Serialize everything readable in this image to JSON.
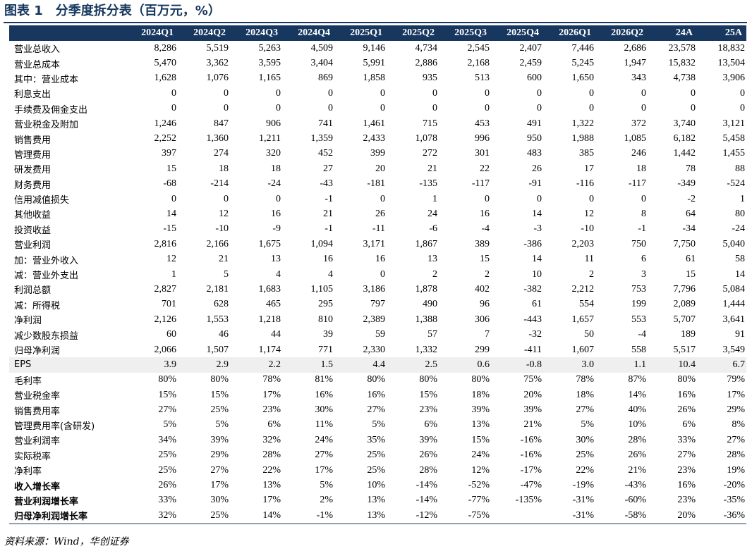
{
  "title": "图表 1　分季度拆分表（百万元，%）",
  "header": [
    "",
    "2024Q1",
    "2024Q2",
    "2024Q3",
    "2024Q4",
    "2025Q1",
    "2025Q2",
    "2025Q3",
    "2025Q4",
    "2026Q1",
    "2026Q2",
    "24A",
    "25A"
  ],
  "rows": [
    {
      "label": "营业总收入",
      "values": [
        "8,286",
        "5,519",
        "5,263",
        "4,509",
        "9,146",
        "4,734",
        "2,545",
        "2,407",
        "7,446",
        "2,686",
        "23,578",
        "18,832"
      ]
    },
    {
      "label": "营业总成本",
      "values": [
        "5,470",
        "3,362",
        "3,595",
        "3,404",
        "5,991",
        "2,886",
        "2,168",
        "2,459",
        "5,245",
        "1,947",
        "15,832",
        "13,504"
      ]
    },
    {
      "label": "其中：营业成本",
      "values": [
        "1,628",
        "1,076",
        "1,165",
        "869",
        "1,858",
        "935",
        "513",
        "600",
        "1,650",
        "343",
        "4,738",
        "3,906"
      ]
    },
    {
      "label": "利息支出",
      "values": [
        "0",
        "0",
        "0",
        "0",
        "0",
        "0",
        "0",
        "0",
        "0",
        "0",
        "0",
        "0"
      ]
    },
    {
      "label": "手续费及佣金支出",
      "values": [
        "0",
        "0",
        "0",
        "0",
        "0",
        "0",
        "0",
        "0",
        "0",
        "0",
        "0",
        "0"
      ]
    },
    {
      "label": "营业税金及附加",
      "values": [
        "1,246",
        "847",
        "906",
        "741",
        "1,461",
        "715",
        "453",
        "491",
        "1,322",
        "372",
        "3,740",
        "3,121"
      ]
    },
    {
      "label": "销售费用",
      "values": [
        "2,252",
        "1,360",
        "1,211",
        "1,359",
        "2,433",
        "1,078",
        "996",
        "950",
        "1,988",
        "1,085",
        "6,182",
        "5,458"
      ]
    },
    {
      "label": "管理费用",
      "values": [
        "397",
        "274",
        "320",
        "452",
        "399",
        "272",
        "301",
        "483",
        "385",
        "246",
        "1,442",
        "1,455"
      ]
    },
    {
      "label": "研发费用",
      "values": [
        "15",
        "18",
        "18",
        "27",
        "20",
        "21",
        "22",
        "26",
        "17",
        "18",
        "78",
        "88"
      ]
    },
    {
      "label": "财务费用",
      "values": [
        "-68",
        "-214",
        "-24",
        "-43",
        "-181",
        "-135",
        "-117",
        "-91",
        "-116",
        "-117",
        "-349",
        "-524"
      ]
    },
    {
      "label": "信用减值损失",
      "values": [
        "0",
        "0",
        "0",
        "-1",
        "0",
        "1",
        "0",
        "0",
        "0",
        "0",
        "-2",
        "1"
      ]
    },
    {
      "label": "其他收益",
      "values": [
        "14",
        "12",
        "16",
        "21",
        "26",
        "24",
        "16",
        "14",
        "12",
        "8",
        "64",
        "80"
      ]
    },
    {
      "label": "投资收益",
      "values": [
        "-15",
        "-10",
        "-9",
        "-1",
        "-11",
        "-6",
        "-4",
        "-3",
        "-10",
        "-1",
        "-34",
        "-24"
      ]
    },
    {
      "label": "营业利润",
      "values": [
        "2,816",
        "2,166",
        "1,675",
        "1,094",
        "3,171",
        "1,867",
        "389",
        "-386",
        "2,203",
        "750",
        "7,750",
        "5,040"
      ]
    },
    {
      "label": "加：营业外收入",
      "values": [
        "12",
        "21",
        "13",
        "16",
        "16",
        "13",
        "15",
        "14",
        "11",
        "6",
        "61",
        "58"
      ]
    },
    {
      "label": "减：营业外支出",
      "values": [
        "1",
        "5",
        "4",
        "4",
        "0",
        "2",
        "2",
        "10",
        "2",
        "3",
        "15",
        "14"
      ]
    },
    {
      "label": "利润总额",
      "values": [
        "2,827",
        "2,181",
        "1,683",
        "1,105",
        "3,186",
        "1,878",
        "402",
        "-382",
        "2,212",
        "753",
        "7,796",
        "5,084"
      ]
    },
    {
      "label": "减：所得税",
      "values": [
        "701",
        "628",
        "465",
        "295",
        "797",
        "490",
        "96",
        "61",
        "554",
        "199",
        "2,089",
        "1,444"
      ]
    },
    {
      "label": "净利润",
      "values": [
        "2,126",
        "1,553",
        "1,218",
        "810",
        "2,389",
        "1,388",
        "306",
        "-443",
        "1,657",
        "553",
        "5,707",
        "3,641"
      ]
    },
    {
      "label": "减少数股东损益",
      "values": [
        "60",
        "46",
        "44",
        "39",
        "59",
        "57",
        "7",
        "-32",
        "50",
        "-4",
        "189",
        "91"
      ]
    },
    {
      "label": "归母净利润",
      "values": [
        "2,066",
        "1,507",
        "1,174",
        "771",
        "2,330",
        "1,332",
        "299",
        "-411",
        "1,607",
        "558",
        "5,517",
        "3,549"
      ]
    },
    {
      "label": "EPS",
      "values": [
        "3.9",
        "2.9",
        "2.2",
        "1.5",
        "4.4",
        "2.5",
        "0.6",
        "-0.8",
        "3.0",
        "1.1",
        "10.4",
        "6.7"
      ],
      "shade": true
    },
    {
      "label": "毛利率",
      "values": [
        "80%",
        "80%",
        "78%",
        "81%",
        "80%",
        "80%",
        "80%",
        "75%",
        "78%",
        "87%",
        "80%",
        "79%"
      ]
    },
    {
      "label": "营业税金率",
      "values": [
        "15%",
        "15%",
        "17%",
        "16%",
        "16%",
        "15%",
        "18%",
        "20%",
        "18%",
        "14%",
        "16%",
        "17%"
      ]
    },
    {
      "label": "销售费用率",
      "values": [
        "27%",
        "25%",
        "23%",
        "30%",
        "27%",
        "23%",
        "39%",
        "39%",
        "27%",
        "40%",
        "26%",
        "29%"
      ]
    },
    {
      "label": "管理费用率(含研发)",
      "values": [
        "5%",
        "5%",
        "6%",
        "11%",
        "5%",
        "6%",
        "13%",
        "21%",
        "5%",
        "10%",
        "6%",
        "8%"
      ]
    },
    {
      "label": "营业利润率",
      "values": [
        "34%",
        "39%",
        "32%",
        "24%",
        "35%",
        "39%",
        "15%",
        "-16%",
        "30%",
        "28%",
        "33%",
        "27%"
      ]
    },
    {
      "label": "实际税率",
      "values": [
        "25%",
        "29%",
        "28%",
        "27%",
        "25%",
        "26%",
        "24%",
        "-16%",
        "25%",
        "26%",
        "27%",
        "28%"
      ]
    },
    {
      "label": "净利率",
      "values": [
        "25%",
        "27%",
        "22%",
        "17%",
        "25%",
        "28%",
        "12%",
        "-17%",
        "22%",
        "21%",
        "23%",
        "19%"
      ]
    },
    {
      "label": "收入增长率",
      "values": [
        "26%",
        "17%",
        "13%",
        "5%",
        "10%",
        "-14%",
        "-52%",
        "-47%",
        "-19%",
        "-43%",
        "16%",
        "-20%"
      ],
      "bold": true
    },
    {
      "label": "营业利润增长率",
      "values": [
        "33%",
        "30%",
        "17%",
        "2%",
        "13%",
        "-14%",
        "-77%",
        "-135%",
        "-31%",
        "-60%",
        "23%",
        "-35%"
      ],
      "bold": true
    },
    {
      "label": "归母净利润增长率",
      "values": [
        "32%",
        "25%",
        "14%",
        "-1%",
        "13%",
        "-12%",
        "-75%",
        "",
        "-31%",
        "-58%",
        "20%",
        "-36%"
      ],
      "bold": true
    }
  ],
  "source": "资料来源：Wind，华创证券",
  "colors": {
    "header_bg": "#17375e",
    "title": "#17375e",
    "shade": "#efefef"
  }
}
